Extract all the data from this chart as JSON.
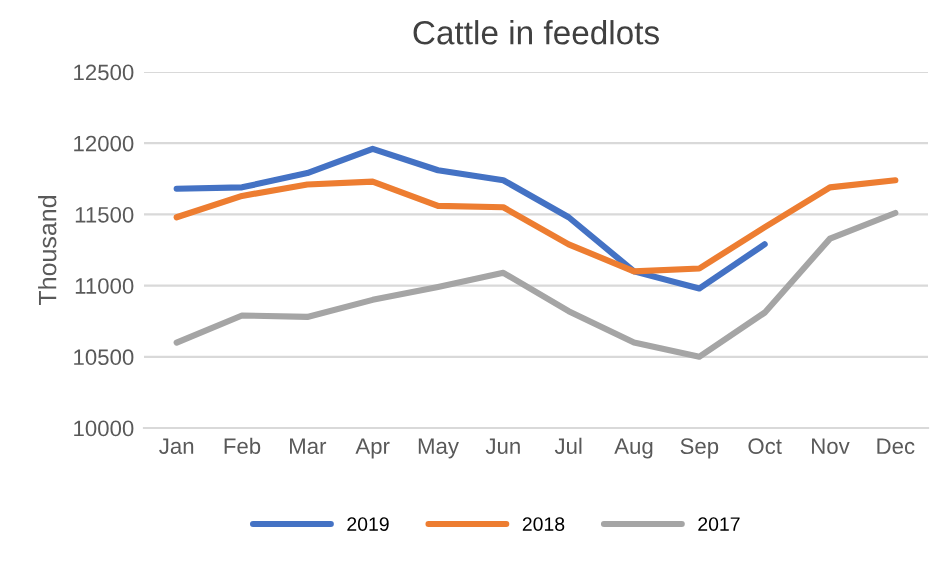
{
  "chart_data": {
    "type": "line",
    "title": "Cattle in feedlots",
    "ylabel": "Thousand",
    "categories": [
      "Jan",
      "Feb",
      "Mar",
      "Apr",
      "May",
      "Jun",
      "Jul",
      "Aug",
      "Sep",
      "Oct",
      "Nov",
      "Dec"
    ],
    "series": [
      {
        "name": "2019",
        "color": "#4472c4",
        "values": [
          11680,
          11690,
          11790,
          11960,
          11810,
          11740,
          11480,
          11100,
          10980,
          11290,
          null,
          null
        ]
      },
      {
        "name": "2018",
        "color": "#ed7d31",
        "values": [
          11480,
          11630,
          11710,
          11730,
          11560,
          11550,
          11290,
          11100,
          11120,
          11410,
          11690,
          11740
        ]
      },
      {
        "name": "2017",
        "color": "#a5a5a5",
        "values": [
          10600,
          10790,
          10780,
          10900,
          10990,
          11090,
          10820,
          10600,
          10500,
          10810,
          11330,
          11510
        ]
      }
    ],
    "ylim": [
      10000,
      12500
    ],
    "yticks": [
      10000,
      10500,
      11000,
      11500,
      12000,
      12500
    ],
    "grid": "y",
    "legend": "bottom",
    "marker": "none",
    "line_style": "solid"
  }
}
